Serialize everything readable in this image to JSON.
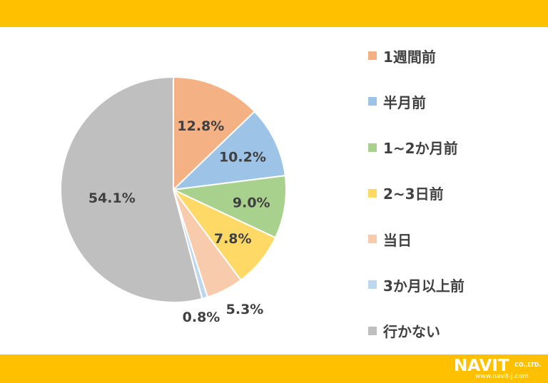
{
  "colors": {
    "band": "#ffc000",
    "label_text": "#404040",
    "slice_border": "#ffffff"
  },
  "chart_data": {
    "type": "pie",
    "title": "",
    "start_angle_deg": 0,
    "direction": "clockwise",
    "legend_position": "right",
    "slices": [
      {
        "name": "1週間前",
        "value": 12.8,
        "label": "12.8%",
        "color": "#f4b183"
      },
      {
        "name": "半月前",
        "value": 10.2,
        "label": "10.2%",
        "color": "#9dc3e6"
      },
      {
        "name": "1~2か月前",
        "value": 9.0,
        "label": "9.0%",
        "color": "#a9d18e"
      },
      {
        "name": "2~3日前",
        "value": 7.8,
        "label": "7.8%",
        "color": "#ffd966"
      },
      {
        "name": "当日",
        "value": 5.3,
        "label": "5.3%",
        "color": "#f8cbad"
      },
      {
        "name": "3か月以上前",
        "value": 0.8,
        "label": "0.8%",
        "color": "#bdd7ee"
      },
      {
        "name": "行かない",
        "value": 54.1,
        "label": "54.1%",
        "color": "#bfbfbf"
      }
    ]
  },
  "logo": {
    "main": "NAVIT",
    "suffix": "CO.,LTD.",
    "url": "www.navit-j.com"
  }
}
